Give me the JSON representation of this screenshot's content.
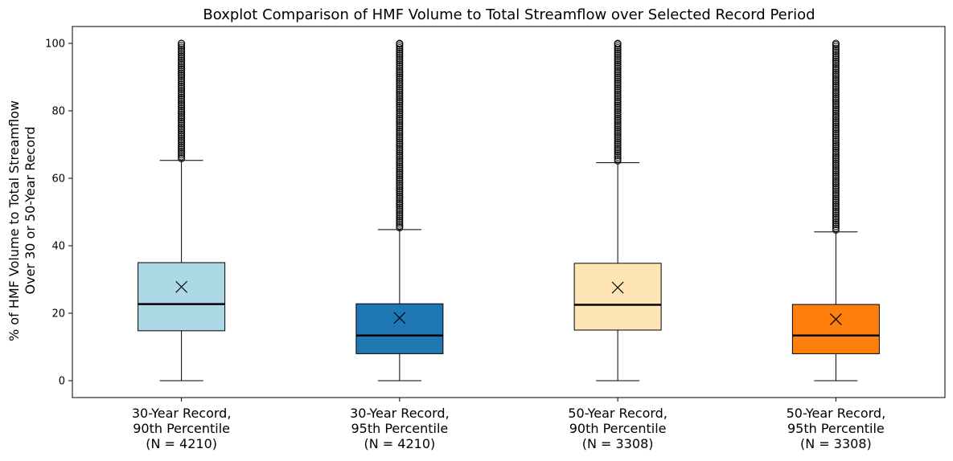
{
  "chart_data": {
    "type": "boxplot",
    "title": "Boxplot Comparison of HMF Volume to Total Streamflow over Selected Record Period",
    "ylabel_lines": [
      "% of HMF Volume to Total Streamflow",
      "Over 30 or 50-Year Record"
    ],
    "xlabel": "",
    "ylim": [
      -5,
      105
    ],
    "yticks": [
      0,
      20,
      40,
      60,
      80,
      100
    ],
    "grid": false,
    "mean_marker": "x",
    "median_line_color": "#000000",
    "boxes": [
      {
        "label_lines": [
          "30-Year Record,",
          "90th Percentile",
          "(N = 4210)"
        ],
        "color": "#add8e6",
        "whisker_low": 0,
        "q1": 14.8,
        "median": 22.7,
        "q3": 35.0,
        "whisker_high": 65.3,
        "mean": 27.8,
        "outlier_range": [
          65.3,
          100
        ]
      },
      {
        "label_lines": [
          "30-Year Record,",
          "95th Percentile",
          "(N = 4210)"
        ],
        "color": "#1f77b4",
        "whisker_low": 0,
        "q1": 8.0,
        "median": 13.4,
        "q3": 22.8,
        "whisker_high": 44.8,
        "mean": 18.6,
        "outlier_range": [
          44.8,
          100
        ]
      },
      {
        "label_lines": [
          "50-Year Record,",
          "90th Percentile",
          "(N = 3308)"
        ],
        "color": "#ffe4b5",
        "whisker_low": 0,
        "q1": 15.0,
        "median": 22.5,
        "q3": 34.8,
        "whisker_high": 64.6,
        "mean": 27.6,
        "outlier_range": [
          64.6,
          100
        ]
      },
      {
        "label_lines": [
          "50-Year Record,",
          "95th Percentile",
          "(N = 3308)"
        ],
        "color": "#ff7f0e",
        "whisker_low": 0,
        "q1": 8.0,
        "median": 13.4,
        "q3": 22.6,
        "whisker_high": 44.1,
        "mean": 18.2,
        "outlier_range": [
          44.1,
          100
        ]
      }
    ]
  }
}
